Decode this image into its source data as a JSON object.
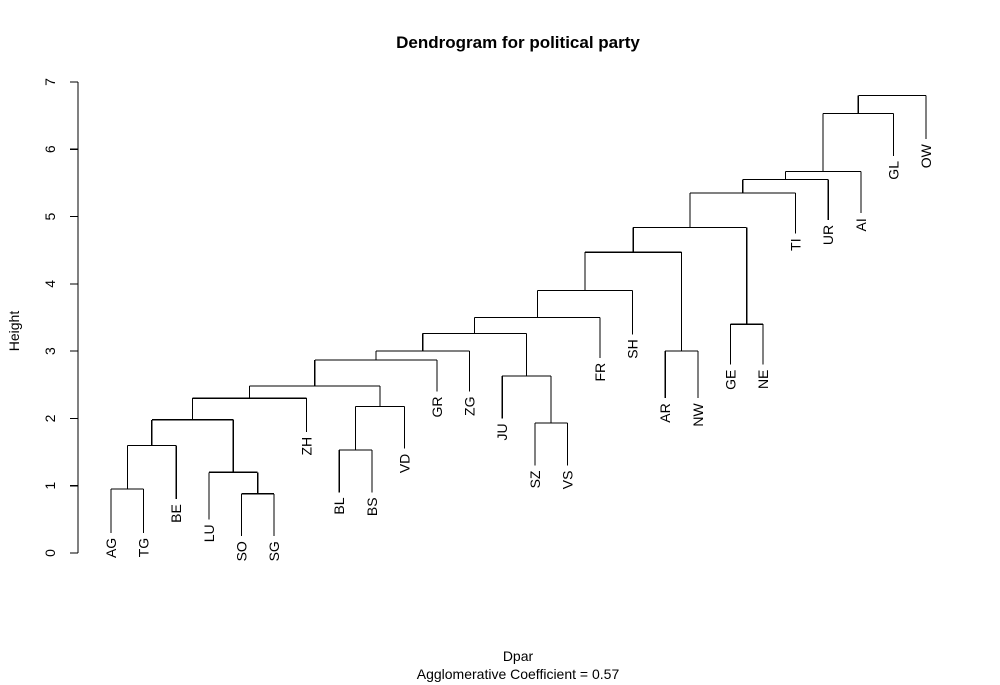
{
  "chart_data": {
    "type": "dendrogram",
    "title": "Dendrogram for political party",
    "ylabel": "Height",
    "xlabel": "Dpar",
    "subtitle": "Agglomerative Coefficient =  0.57",
    "ylim": [
      0,
      7
    ],
    "yticks": [
      "0",
      "1",
      "2",
      "3",
      "4",
      "5",
      "6",
      "7"
    ],
    "leaves": [
      {
        "label": "AG",
        "height": 0.3
      },
      {
        "label": "TG",
        "height": 0.3
      },
      {
        "label": "BE",
        "height": 0.8
      },
      {
        "label": "LU",
        "height": 0.5
      },
      {
        "label": "SO",
        "height": 0.25
      },
      {
        "label": "SG",
        "height": 0.25
      },
      {
        "label": "ZH",
        "height": 1.8
      },
      {
        "label": "BL",
        "height": 0.9
      },
      {
        "label": "BS",
        "height": 0.9
      },
      {
        "label": "VD",
        "height": 1.55
      },
      {
        "label": "GR",
        "height": 2.4
      },
      {
        "label": "ZG",
        "height": 2.4
      },
      {
        "label": "JU",
        "height": 2.0
      },
      {
        "label": "SZ",
        "height": 1.3
      },
      {
        "label": "VS",
        "height": 1.3
      },
      {
        "label": "FR",
        "height": 2.9
      },
      {
        "label": "SH",
        "height": 3.25
      },
      {
        "label": "AR",
        "height": 2.3
      },
      {
        "label": "NW",
        "height": 2.3
      },
      {
        "label": "GE",
        "height": 2.8
      },
      {
        "label": "NE",
        "height": 2.8
      },
      {
        "label": "TI",
        "height": 4.75
      },
      {
        "label": "UR",
        "height": 4.95
      },
      {
        "label": "AI",
        "height": 5.05
      },
      {
        "label": "GL",
        "height": 5.9
      },
      {
        "label": "OW",
        "height": 6.15
      }
    ],
    "merges": [
      {
        "a": "AG",
        "b": "TG",
        "height": 0.95,
        "id": "m1"
      },
      {
        "a": "SO",
        "b": "SG",
        "height": 0.88,
        "id": "m2"
      },
      {
        "a": "LU",
        "b": "m2",
        "height": 1.2,
        "id": "m3"
      },
      {
        "a": "m1",
        "b": "BE",
        "height": 1.6,
        "id": "m4"
      },
      {
        "a": "m4",
        "b": "m3",
        "height": 1.98,
        "id": "m5"
      },
      {
        "a": "m5",
        "b": "ZH",
        "height": 2.3,
        "id": "m6"
      },
      {
        "a": "BL",
        "b": "BS",
        "height": 1.53,
        "id": "m7"
      },
      {
        "a": "m7",
        "b": "VD",
        "height": 2.18,
        "id": "m8"
      },
      {
        "a": "m6",
        "b": "m8",
        "height": 2.48,
        "id": "m9"
      },
      {
        "a": "m9",
        "b": "GR",
        "height": 2.87,
        "id": "m10"
      },
      {
        "a": "m10",
        "b": "ZG",
        "height": 3.0,
        "id": "m11"
      },
      {
        "a": "SZ",
        "b": "VS",
        "height": 1.93,
        "id": "m12"
      },
      {
        "a": "JU",
        "b": "m12",
        "height": 2.63,
        "id": "m13"
      },
      {
        "a": "m11",
        "b": "m13",
        "height": 3.26,
        "id": "m14"
      },
      {
        "a": "m14",
        "b": "FR",
        "height": 3.5,
        "id": "m15"
      },
      {
        "a": "m15",
        "b": "SH",
        "height": 3.9,
        "id": "m16"
      },
      {
        "a": "AR",
        "b": "NW",
        "height": 3.0,
        "id": "m17"
      },
      {
        "a": "m16",
        "b": "m17",
        "height": 4.47,
        "id": "m18"
      },
      {
        "a": "GE",
        "b": "NE",
        "height": 3.4,
        "id": "m19"
      },
      {
        "a": "m18",
        "b": "m19",
        "height": 4.84,
        "id": "m20"
      },
      {
        "a": "m20",
        "b": "TI",
        "height": 5.35,
        "id": "m21"
      },
      {
        "a": "m21",
        "b": "UR",
        "height": 5.55,
        "id": "m22"
      },
      {
        "a": "m22",
        "b": "AI",
        "height": 5.67,
        "id": "m23"
      },
      {
        "a": "m23",
        "b": "GL",
        "height": 6.53,
        "id": "m24"
      },
      {
        "a": "m24",
        "b": "OW",
        "height": 6.8,
        "id": "m25"
      }
    ]
  }
}
